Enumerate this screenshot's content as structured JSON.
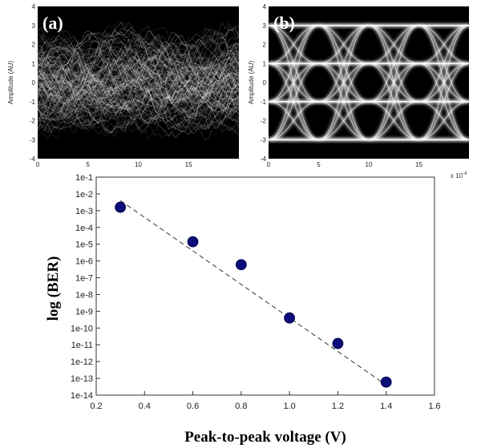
{
  "chart_data": [
    {
      "panel_label": "(a)",
      "type": "heatmap",
      "description_kind": "eye-diagram",
      "ylabel": "Amplitude (AU)",
      "yticks": [
        "4",
        "3",
        "2",
        "1",
        "0",
        "-1",
        "-2",
        "-3",
        "-4"
      ],
      "ylim": [
        -4,
        4
      ],
      "xticks": [
        "0",
        "5",
        "10",
        "15"
      ],
      "xlim": [
        0,
        20
      ]
    },
    {
      "panel_label": "(b)",
      "type": "heatmap",
      "description_kind": "eye-diagram",
      "ylabel": "Amplitude (AU)",
      "yticks": [
        "4",
        "3",
        "2",
        "1",
        "0",
        "-1",
        "-2",
        "-3",
        "-4"
      ],
      "ylim": [
        -4,
        4
      ],
      "xticks": [
        "0",
        "5",
        "10",
        "15"
      ],
      "xlim": [
        0,
        20
      ],
      "x_multiplier": "x 10",
      "x_multiplier_exp": "-4",
      "levels": [
        3,
        1,
        -1,
        -3
      ]
    },
    {
      "type": "scatter",
      "xlabel": "Peak-to-peak voltage (V)",
      "ylabel": "log (BER)",
      "xlim": [
        0.2,
        1.6
      ],
      "xticks": [
        "0.2",
        "0.4",
        "0.6",
        "0.8",
        "1.0",
        "1.2",
        "1.4",
        "1.6"
      ],
      "ylim_exp": [
        -14,
        -1
      ],
      "yticks": [
        "1e-1",
        "1e-2",
        "1e-3",
        "1e-4",
        "1e-5",
        "1e-6",
        "1e-7",
        "1e-8",
        "1e-9",
        "1e-10",
        "1e-11",
        "1e-12",
        "1e-13",
        "1e-14"
      ],
      "points": [
        {
          "x": 0.3,
          "y": 0.0016
        },
        {
          "x": 0.6,
          "y": 1.4e-05
        },
        {
          "x": 0.8,
          "y": 6e-07
        },
        {
          "x": 1.0,
          "y": 4e-10
        },
        {
          "x": 1.2,
          "y": 1.2e-11
        },
        {
          "x": 1.4,
          "y": 6e-14
        }
      ],
      "fit_line": [
        {
          "x": 0.3,
          "y": 0.004
        },
        {
          "x": 1.4,
          "y": 4e-14
        }
      ],
      "grid": false,
      "legend": "none",
      "marker_color": "#0b0b7a"
    }
  ]
}
